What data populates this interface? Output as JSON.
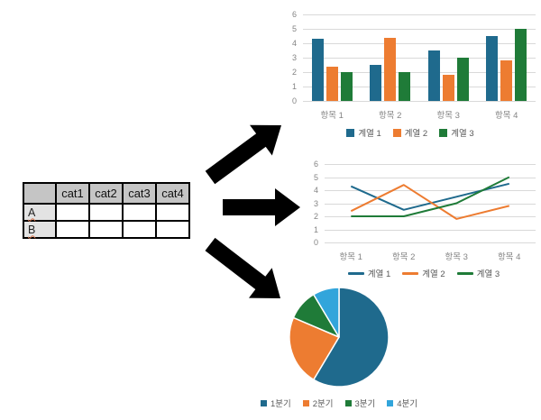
{
  "table": {
    "corner": "",
    "columns": [
      "cat1",
      "cat2",
      "cat3",
      "cat4"
    ],
    "rows": [
      {
        "header": "A",
        "cells": [
          "",
          "",
          "",
          ""
        ]
      },
      {
        "header": "B",
        "cells": [
          "",
          "",
          "",
          ""
        ]
      }
    ]
  },
  "colors": {
    "series1": "#1F6A8D",
    "series2": "#ED7C31",
    "series3": "#1F7B38",
    "series4": "#32A5DB",
    "grid": "#D9D9D9",
    "axis_text": "#848484",
    "legend_text": "#595959",
    "arrow": "#000000",
    "table_header_bg": "#C5C5C5",
    "table_rowheader_bg": "#E3E3E3"
  },
  "chart_data": [
    {
      "id": "bar",
      "type": "bar",
      "title": "",
      "categories": [
        "항목 1",
        "항목 2",
        "항목 3",
        "항목 4"
      ],
      "series": [
        {
          "name": "계열 1",
          "values": [
            4.3,
            2.5,
            3.5,
            4.5
          ]
        },
        {
          "name": "계열 2",
          "values": [
            2.4,
            4.4,
            1.8,
            2.8
          ]
        },
        {
          "name": "계열 3",
          "values": [
            2.0,
            2.0,
            3.0,
            5.0
          ]
        }
      ],
      "xlabel": "",
      "ylabel": "",
      "ylim": [
        0,
        6
      ],
      "yticks": [
        0,
        1,
        2,
        3,
        4,
        5,
        6
      ],
      "grid": true,
      "legend_position": "bottom"
    },
    {
      "id": "line",
      "type": "line",
      "title": "",
      "categories": [
        "항목 1",
        "항목 2",
        "항목 3",
        "항목 4"
      ],
      "series": [
        {
          "name": "계열 1",
          "values": [
            4.3,
            2.5,
            3.5,
            4.5
          ]
        },
        {
          "name": "계열 2",
          "values": [
            2.4,
            4.4,
            1.8,
            2.8
          ]
        },
        {
          "name": "계열 3",
          "values": [
            2.0,
            2.0,
            3.0,
            5.0
          ]
        }
      ],
      "xlabel": "",
      "ylabel": "",
      "ylim": [
        0,
        6
      ],
      "yticks": [
        0,
        1,
        2,
        3,
        4,
        5,
        6
      ],
      "grid": true,
      "legend_position": "bottom"
    },
    {
      "id": "pie",
      "type": "pie",
      "title": "",
      "labels": [
        "1분기",
        "2분기",
        "3분기",
        "4분기"
      ],
      "values": [
        8.2,
        3.2,
        1.4,
        1.2
      ],
      "legend_position": "bottom"
    }
  ]
}
